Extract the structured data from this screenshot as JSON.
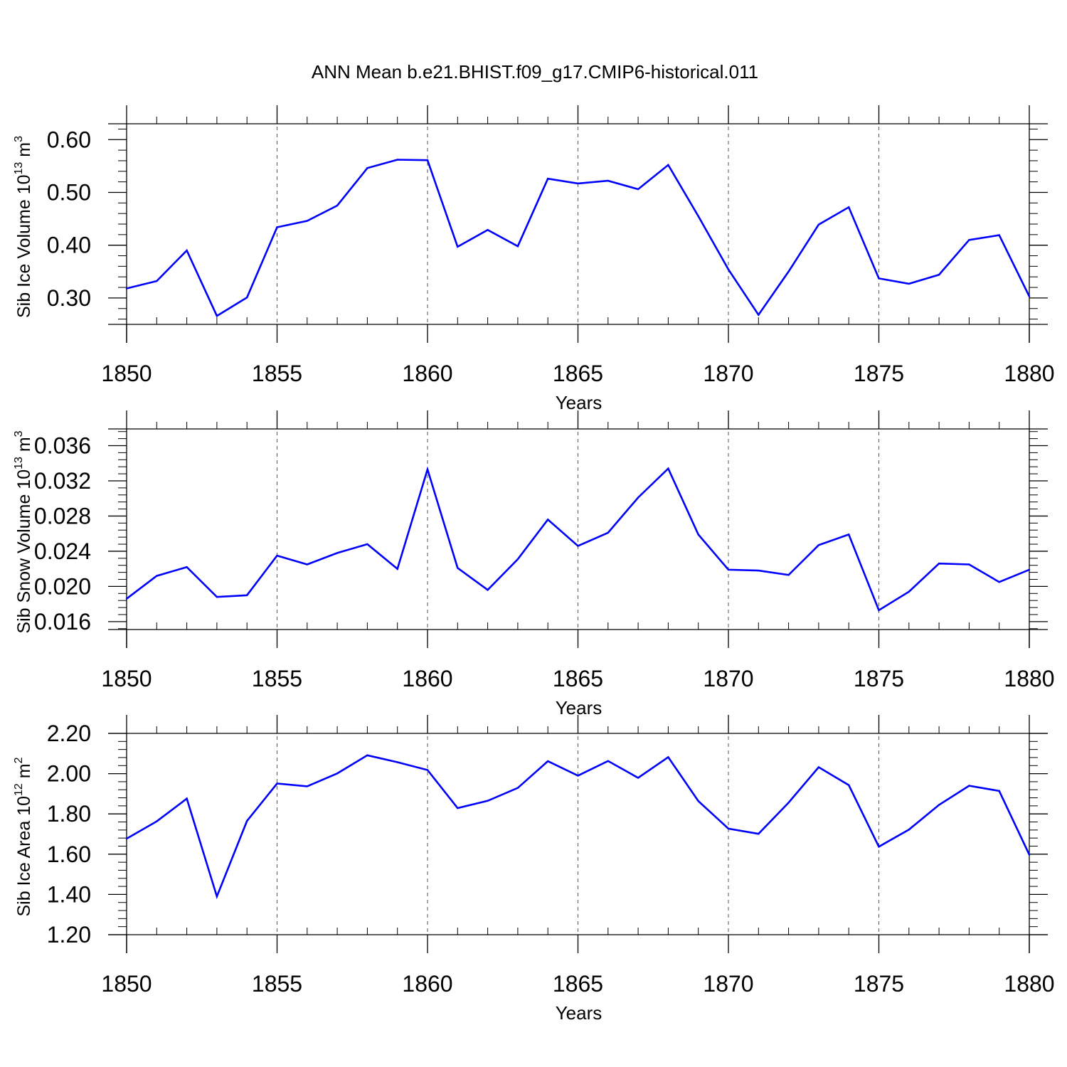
{
  "title": "ANN Mean b.e21.BHIST.f09_g17.CMIP6-historical.011",
  "colors": {
    "line": "#0000ff",
    "axis": "#000000",
    "grid": "#555555"
  },
  "chart_data": [
    {
      "type": "line",
      "ylabel": "Sib Ice Volume 10",
      "ylabel_exp": "13",
      "ylabel_unit": " m",
      "ylabel_unit_exp": "3",
      "xlabel": "Years",
      "xlim": [
        1850,
        1880
      ],
      "ylim": [
        0.25,
        0.63
      ],
      "yticks": [
        0.3,
        0.4,
        0.5,
        0.6
      ],
      "ytick_labels": [
        "0.30",
        "0.40",
        "0.50",
        "0.60"
      ],
      "xticks": [
        1850,
        1855,
        1860,
        1865,
        1870,
        1875,
        1880
      ],
      "xtick_labels": [
        "1850",
        "1855",
        "1860",
        "1865",
        "1870",
        "1875",
        "1880"
      ],
      "x": [
        1850,
        1851,
        1852,
        1853,
        1854,
        1855,
        1856,
        1857,
        1858,
        1859,
        1860,
        1861,
        1862,
        1863,
        1864,
        1865,
        1866,
        1867,
        1868,
        1869,
        1870,
        1871,
        1872,
        1873,
        1874,
        1875,
        1876,
        1877,
        1878,
        1879,
        1880
      ],
      "values": [
        0.318,
        0.332,
        0.39,
        0.266,
        0.301,
        0.434,
        0.446,
        0.475,
        0.546,
        0.562,
        0.561,
        0.397,
        0.429,
        0.398,
        0.526,
        0.517,
        0.522,
        0.506,
        0.552,
        0.455,
        0.354,
        0.268,
        0.35,
        0.439,
        0.472,
        0.337,
        0.327,
        0.344,
        0.41,
        0.419,
        0.303
      ]
    },
    {
      "type": "line",
      "ylabel": "Sib Snow Volume 10",
      "ylabel_exp": "13",
      "ylabel_unit": " m",
      "ylabel_unit_exp": "3",
      "xlabel": "Years",
      "xlim": [
        1850,
        1880
      ],
      "ylim": [
        0.0151,
        0.0379
      ],
      "yticks": [
        0.016,
        0.02,
        0.024,
        0.028,
        0.032,
        0.036
      ],
      "ytick_labels": [
        "0.016",
        "0.020",
        "0.024",
        "0.028",
        "0.032",
        "0.036"
      ],
      "xticks": [
        1850,
        1855,
        1860,
        1865,
        1870,
        1875,
        1880
      ],
      "xtick_labels": [
        "1850",
        "1855",
        "1860",
        "1865",
        "1870",
        "1875",
        "1880"
      ],
      "x": [
        1850,
        1851,
        1852,
        1853,
        1854,
        1855,
        1856,
        1857,
        1858,
        1859,
        1860,
        1861,
        1862,
        1863,
        1864,
        1865,
        1866,
        1867,
        1868,
        1869,
        1870,
        1871,
        1872,
        1873,
        1874,
        1875,
        1876,
        1877,
        1878,
        1879,
        1880
      ],
      "values": [
        0.0186,
        0.0212,
        0.0222,
        0.0188,
        0.019,
        0.0235,
        0.0225,
        0.0238,
        0.0248,
        0.022,
        0.0333,
        0.0221,
        0.0196,
        0.0231,
        0.0276,
        0.0246,
        0.0261,
        0.0301,
        0.0334,
        0.0259,
        0.0219,
        0.0218,
        0.0213,
        0.0247,
        0.0259,
        0.0173,
        0.0194,
        0.0226,
        0.0225,
        0.0205,
        0.0219
      ]
    },
    {
      "type": "line",
      "ylabel": "Sib Ice Area 10",
      "ylabel_exp": "12",
      "ylabel_unit": " m",
      "ylabel_unit_exp": "2",
      "xlabel": "Years",
      "xlim": [
        1850,
        1880
      ],
      "ylim": [
        1.2,
        2.2
      ],
      "yticks": [
        1.2,
        1.4,
        1.6,
        1.8,
        2.0,
        2.2
      ],
      "ytick_labels": [
        "1.20",
        "1.40",
        "1.60",
        "1.80",
        "2.00",
        "2.20"
      ],
      "xticks": [
        1850,
        1855,
        1860,
        1865,
        1870,
        1875,
        1880
      ],
      "xtick_labels": [
        "1850",
        "1855",
        "1860",
        "1865",
        "1870",
        "1875",
        "1880"
      ],
      "x": [
        1850,
        1851,
        1852,
        1853,
        1854,
        1855,
        1856,
        1857,
        1858,
        1859,
        1860,
        1861,
        1862,
        1863,
        1864,
        1865,
        1866,
        1867,
        1868,
        1869,
        1870,
        1871,
        1872,
        1873,
        1874,
        1875,
        1876,
        1877,
        1878,
        1879,
        1880
      ],
      "values": [
        1.677,
        1.763,
        1.876,
        1.39,
        1.765,
        1.951,
        1.937,
        2.001,
        2.091,
        2.057,
        2.018,
        1.829,
        1.865,
        1.929,
        2.062,
        1.99,
        2.063,
        1.979,
        2.082,
        1.864,
        1.727,
        1.701,
        1.856,
        2.032,
        1.943,
        1.637,
        1.722,
        1.845,
        1.94,
        1.914,
        1.597
      ]
    }
  ]
}
